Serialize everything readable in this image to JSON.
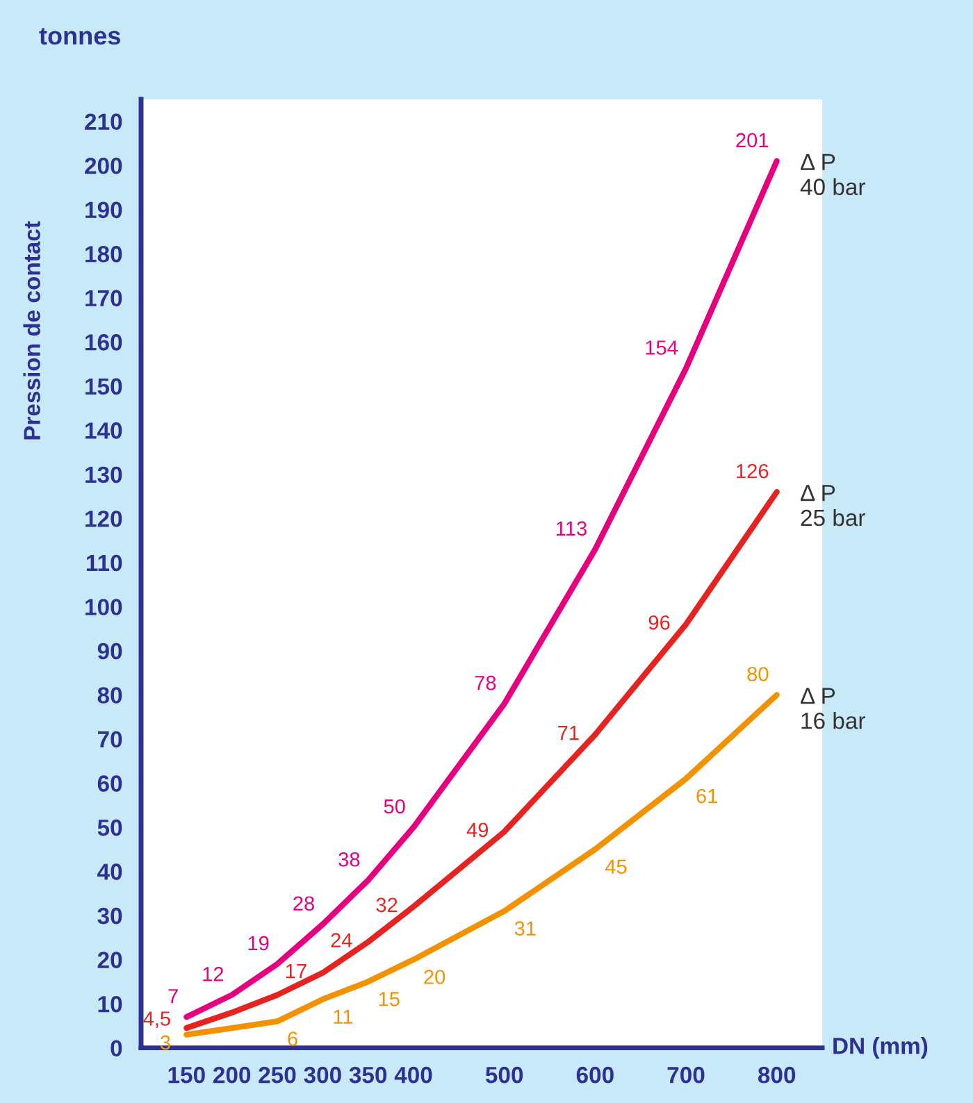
{
  "chart_data": {
    "type": "line",
    "xlabel": "DN (mm)",
    "ylabel": "Pression de contact",
    "annotations": [
      "tonnes"
    ],
    "x": [
      150,
      200,
      250,
      300,
      350,
      400,
      500,
      600,
      700,
      800
    ],
    "series": [
      {
        "name": "Δ P\n40 bar",
        "color": "#e6007e",
        "values": [
          7,
          12,
          19,
          28,
          38,
          50,
          78,
          113,
          154,
          201
        ],
        "value_labels": [
          "7",
          "12",
          "19",
          "28",
          "38",
          "50",
          "78",
          "113",
          "154",
          "201"
        ]
      },
      {
        "name": "Δ P\n25 bar",
        "color": "#e52421",
        "values": [
          4.5,
          8,
          12,
          17,
          24,
          32,
          49,
          71,
          96,
          126
        ],
        "value_labels": [
          "4,5",
          null,
          null,
          "17",
          "24",
          "32",
          "49",
          "71",
          "96",
          "126"
        ]
      },
      {
        "name": "Δ P\n16 bar",
        "color": "#f39200",
        "values": [
          3,
          4.5,
          6,
          11,
          15,
          20,
          31,
          45,
          61,
          80
        ],
        "value_labels": [
          "3",
          null,
          "6",
          "11",
          "15",
          "20",
          "31",
          "45",
          "61",
          "80"
        ]
      }
    ],
    "xlim": [
      100,
      850
    ],
    "ylim": [
      0,
      215
    ],
    "xticks": [
      150,
      200,
      250,
      300,
      350,
      400,
      500,
      600,
      700,
      800
    ],
    "yticks": [
      0,
      10,
      20,
      30,
      40,
      50,
      60,
      70,
      80,
      90,
      100,
      110,
      120,
      130,
      140,
      150,
      160,
      170,
      180,
      190,
      200,
      210
    ],
    "grid": false,
    "legend": false,
    "marker": "none",
    "line_style": "solid"
  }
}
